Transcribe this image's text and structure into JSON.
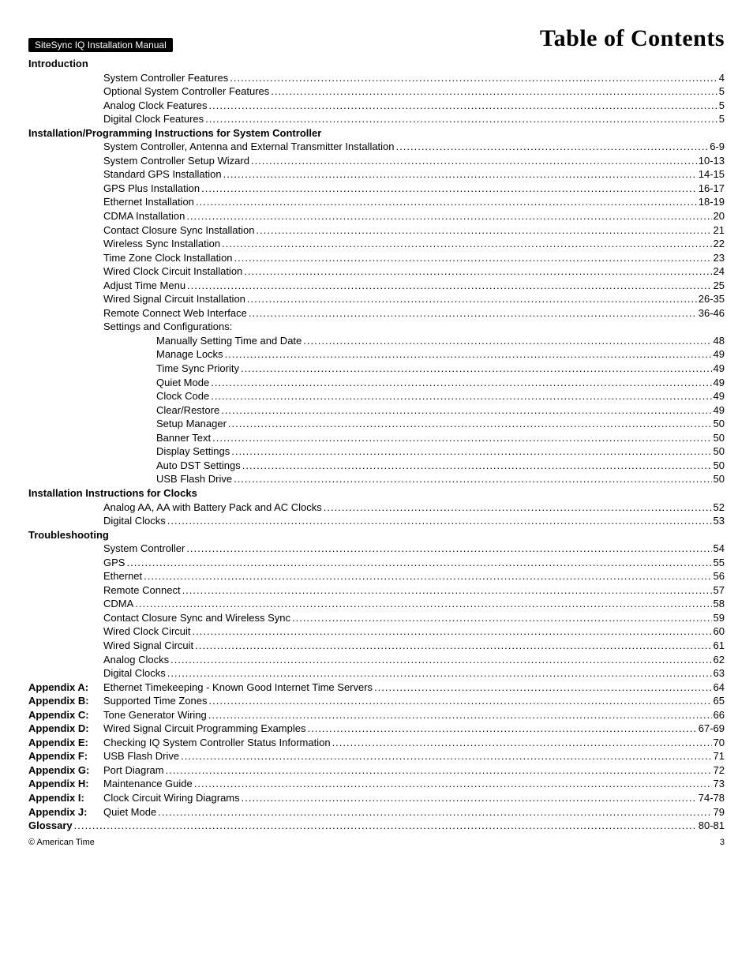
{
  "header": {
    "manual_label": "SiteSync IQ Installation Manual",
    "page_title": "Table of Contents"
  },
  "sections": [
    {
      "heading": "Introduction",
      "heading_indent": 0,
      "entries": [
        {
          "title": "System Controller Features",
          "page": "4",
          "indent": 1
        },
        {
          "title": "Optional System Controller Features",
          "page": "5",
          "indent": 1
        },
        {
          "title": "Analog Clock Features",
          "page": "5",
          "indent": 1
        },
        {
          "title": "Digital Clock Features",
          "page": "5",
          "indent": 1
        }
      ]
    },
    {
      "heading": "Installation/Programming Instructions for System Controller",
      "heading_indent": 0,
      "entries": [
        {
          "title": "System Controller, Antenna and External Transmitter Installation",
          "page": "6-9",
          "indent": 1
        },
        {
          "title": "System Controller Setup Wizard",
          "page": "10-13",
          "indent": 1
        },
        {
          "title": "Standard GPS Installation",
          "page": "14-15",
          "indent": 1
        },
        {
          "title": "GPS Plus Installation",
          "page": "16-17",
          "indent": 1
        },
        {
          "title": "Ethernet Installation",
          "page": "18-19",
          "indent": 1
        },
        {
          "title": "CDMA Installation",
          "page": "20",
          "indent": 1
        },
        {
          "title": "Contact Closure Sync Installation",
          "page": "21",
          "indent": 1
        },
        {
          "title": "Wireless Sync Installation",
          "page": "22",
          "indent": 1
        },
        {
          "title": "Time Zone Clock Installation",
          "page": "23",
          "indent": 1
        },
        {
          "title": "Wired Clock Circuit Installation",
          "page": "24",
          "indent": 1
        },
        {
          "title": "Adjust Time Menu",
          "page": "25",
          "indent": 1
        },
        {
          "title": "Wired Signal Circuit Installation",
          "page": "26-35",
          "indent": 1
        },
        {
          "title": "Remote Connect Web Interface",
          "page": "36-46",
          "indent": 1
        },
        {
          "title": "Settings and Configurations:",
          "page": "",
          "indent": 1,
          "no_leader": true
        },
        {
          "title": "Manually Setting Time and Date",
          "page": "48",
          "indent": 2
        },
        {
          "title": "Manage Locks",
          "page": "49",
          "indent": 2
        },
        {
          "title": "Time Sync Priority",
          "page": "49",
          "indent": 2
        },
        {
          "title": "Quiet Mode",
          "page": "49",
          "indent": 2
        },
        {
          "title": "Clock Code",
          "page": "49",
          "indent": 2
        },
        {
          "title": "Clear/Restore",
          "page": "49",
          "indent": 2
        },
        {
          "title": "Setup Manager",
          "page": "50",
          "indent": 2
        },
        {
          "title": "Banner Text",
          "page": "50",
          "indent": 2
        },
        {
          "title": "Display Settings",
          "page": "50",
          "indent": 2
        },
        {
          "title": "Auto DST Settings",
          "page": "50",
          "indent": 2
        },
        {
          "title": "USB Flash Drive",
          "page": "50",
          "indent": 2
        }
      ]
    },
    {
      "heading": "Installation Instructions for Clocks",
      "heading_indent": 0,
      "entries": [
        {
          "title": "Analog AA, AA with Battery Pack and AC Clocks",
          "page": "52",
          "indent": 1
        },
        {
          "title": "Digital Clocks",
          "page": "53",
          "indent": 1
        }
      ]
    },
    {
      "heading": "Troubleshooting",
      "heading_indent": 0,
      "entries": [
        {
          "title": "System Controller",
          "page": "54",
          "indent": 1
        },
        {
          "title": "GPS",
          "page": "55",
          "indent": 1
        },
        {
          "title": "Ethernet",
          "page": "56",
          "indent": 1
        },
        {
          "title": "Remote Connect",
          "page": "57",
          "indent": 1
        },
        {
          "title": "CDMA",
          "page": "58",
          "indent": 1
        },
        {
          "title": "Contact Closure Sync and Wireless Sync",
          "page": "59",
          "indent": 1
        },
        {
          "title": "Wired Clock Circuit",
          "page": "60",
          "indent": 1
        },
        {
          "title": "Wired Signal Circuit",
          "page": "61",
          "indent": 1
        },
        {
          "title": "Analog Clocks",
          "page": "62",
          "indent": 1
        },
        {
          "title": "Digital Clocks",
          "page": "63",
          "indent": 1
        }
      ]
    }
  ],
  "appendices": [
    {
      "label": "Appendix A:",
      "title": "Ethernet Timekeeping - Known Good Internet Time Servers",
      "page": "64"
    },
    {
      "label": "Appendix B:",
      "title": "Supported Time Zones",
      "page": "65"
    },
    {
      "label": "Appendix C:",
      "title": "Tone Generator Wiring",
      "page": "66"
    },
    {
      "label": "Appendix D:",
      "title": "Wired Signal Circuit Programming Examples",
      "page": "67-69"
    },
    {
      "label": "Appendix E:",
      "title": "Checking IQ System Controller Status Information",
      "page": "70"
    },
    {
      "label": "Appendix F:",
      "title": "USB Flash Drive",
      "page": "71"
    },
    {
      "label": "Appendix G:",
      "title": "Port Diagram",
      "page": "72"
    },
    {
      "label": "Appendix H:",
      "title": "Maintenance Guide",
      "page": "73"
    },
    {
      "label": "Appendix I:",
      "title": "Clock Circuit Wiring Diagrams",
      "page": "74-78"
    },
    {
      "label": "Appendix J:",
      "title": "Quiet Mode",
      "page": "79"
    }
  ],
  "glossary": {
    "label": "Glossary",
    "page": "80-81"
  },
  "footer": {
    "copyright": "© American Time",
    "page_number": "3"
  },
  "style": {
    "body_font": "Arial",
    "title_font": "Georgia",
    "font_size_body": 13,
    "font_size_title": 30,
    "text_color": "#000000",
    "background_color": "#ffffff",
    "label_bg": "#000000",
    "label_fg": "#ffffff"
  }
}
